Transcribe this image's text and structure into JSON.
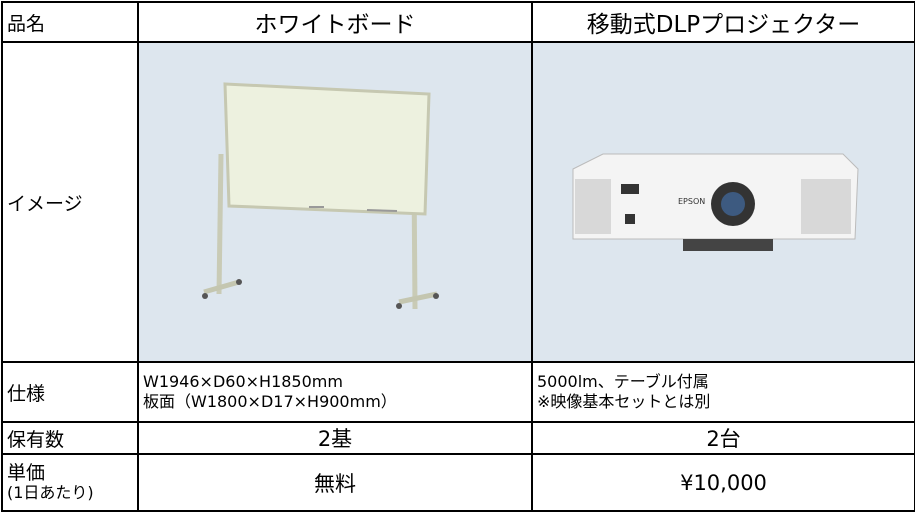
{
  "table": {
    "header": [
      "品名",
      "ホワイトボード",
      "移動式DLPプロジェクター"
    ],
    "image_row": {
      "label": "イメージ",
      "brand": "EPSON"
    },
    "rows": [
      {
        "label": "仕様",
        "cells": [
          [
            "W1946×D60×H1850mm",
            "板面（W1800×D17×H900mm）"
          ],
          [
            "5000lm、テーブル付属",
            "※映像基本セットとは別"
          ]
        ]
      },
      {
        "label": "保有数",
        "cells": [
          "2基",
          "2台"
        ]
      },
      {
        "label": [
          "単価",
          "(1日あたり)"
        ],
        "cells": [
          "無料",
          "¥10,000"
        ]
      }
    ]
  }
}
